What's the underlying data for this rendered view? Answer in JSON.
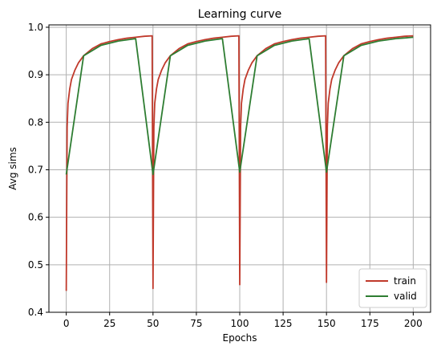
{
  "chart_data": {
    "type": "line",
    "title": "Learning curve",
    "xlabel": "Epochs",
    "ylabel": "Avg sims",
    "xlim": [
      -10,
      210
    ],
    "ylim": [
      0.4,
      1.005
    ],
    "xticks": [
      0,
      25,
      50,
      75,
      100,
      125,
      150,
      175,
      200
    ],
    "yticks": [
      0.4,
      0.5,
      0.6,
      0.7,
      0.8,
      0.9,
      1.0
    ],
    "xtick_labels": [
      "0",
      "25",
      "50",
      "75",
      "100",
      "125",
      "150",
      "175",
      "200"
    ],
    "ytick_labels": [
      "0.4",
      "0.5",
      "0.6",
      "0.7",
      "0.8",
      "0.9",
      "1.0"
    ],
    "grid": true,
    "legend_position": "bottom-right",
    "series": [
      {
        "name": "train",
        "color": "#c0392b",
        "x": [
          0,
          0.5,
          1,
          2,
          3,
          5,
          7,
          10,
          15,
          20,
          25,
          30,
          35,
          40,
          45,
          49.5,
          50,
          50.5,
          51,
          52,
          53,
          55,
          57,
          60,
          65,
          70,
          75,
          80,
          85,
          90,
          95,
          99.5,
          100,
          100.5,
          101,
          102,
          103,
          105,
          107,
          110,
          115,
          120,
          125,
          130,
          135,
          140,
          145,
          149.5,
          150,
          150.5,
          151,
          152,
          153,
          155,
          157,
          160,
          165,
          170,
          175,
          180,
          185,
          190,
          195,
          200
        ],
        "y": [
          0.445,
          0.79,
          0.84,
          0.87,
          0.89,
          0.91,
          0.925,
          0.94,
          0.955,
          0.965,
          0.97,
          0.974,
          0.977,
          0.979,
          0.981,
          0.982,
          0.45,
          0.79,
          0.84,
          0.87,
          0.89,
          0.91,
          0.925,
          0.94,
          0.955,
          0.965,
          0.97,
          0.974,
          0.977,
          0.979,
          0.981,
          0.982,
          0.458,
          0.79,
          0.84,
          0.87,
          0.89,
          0.91,
          0.925,
          0.94,
          0.955,
          0.965,
          0.97,
          0.974,
          0.977,
          0.979,
          0.981,
          0.982,
          0.463,
          0.79,
          0.84,
          0.87,
          0.89,
          0.91,
          0.925,
          0.94,
          0.955,
          0.965,
          0.97,
          0.974,
          0.977,
          0.979,
          0.981,
          0.982
        ]
      },
      {
        "name": "valid",
        "color": "#2e7d32",
        "x": [
          0,
          10,
          20,
          30,
          40,
          50,
          60,
          70,
          80,
          90,
          100,
          110,
          120,
          130,
          140,
          150,
          160,
          170,
          180,
          190,
          200
        ],
        "y": [
          0.69,
          0.94,
          0.962,
          0.971,
          0.976,
          0.69,
          0.94,
          0.962,
          0.971,
          0.976,
          0.695,
          0.94,
          0.962,
          0.971,
          0.976,
          0.695,
          0.94,
          0.962,
          0.971,
          0.976,
          0.979
        ]
      }
    ]
  }
}
